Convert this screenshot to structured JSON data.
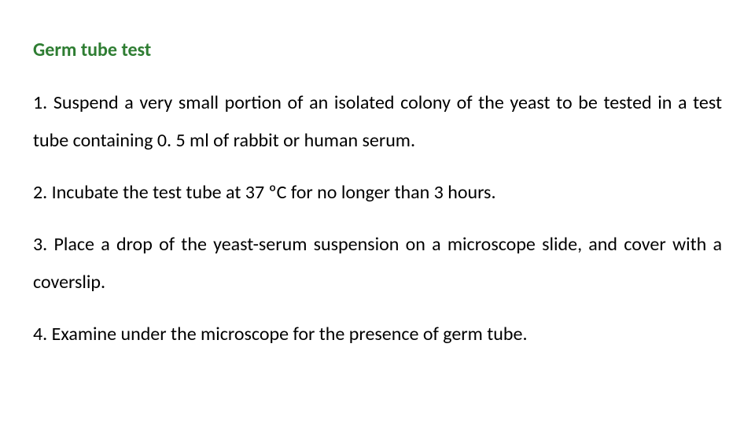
{
  "title": {
    "text": "Germ tube test",
    "color": "#2e7d32",
    "fontsize": 24,
    "fontweight": 700
  },
  "body": {
    "color": "#000000",
    "fontsize": 24,
    "line_height": 2.0
  },
  "steps": [
    {
      "text": "1. Suspend a very small portion of an isolated colony of the yeast to be tested in a test tube containing 0. 5 ml of rabbit or human serum.",
      "justify": true
    },
    {
      "text": "2. Incubate the test tube at 37 ºC for no longer than 3 hours.",
      "justify": false
    },
    {
      "text": "3. Place a drop of the yeast-serum suspension on a microscope slide, and cover with a coverslip.",
      "justify": true
    },
    {
      "text": "4. Examine under the microscope for the presence of germ tube.",
      "justify": false
    }
  ],
  "background_color": "#ffffff"
}
